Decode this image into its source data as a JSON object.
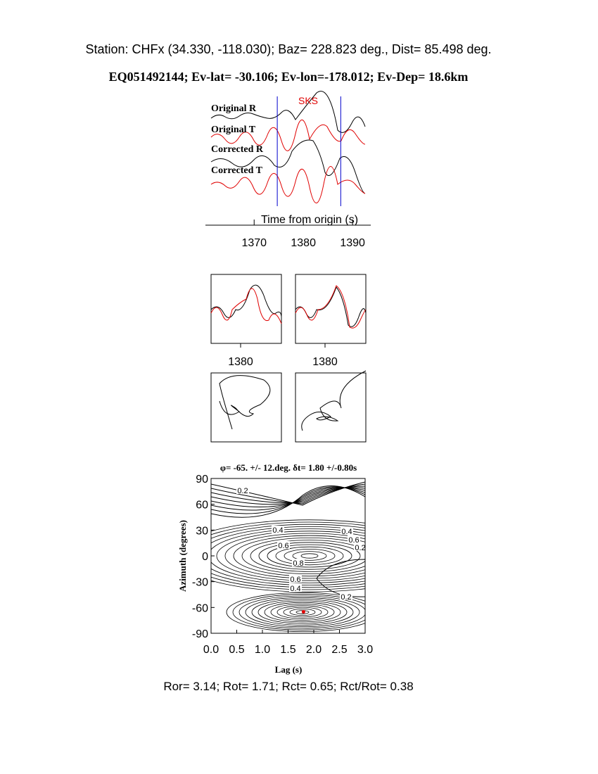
{
  "header": {
    "station": "Station: CHFx (34.330, -118.030); Baz=  228.823 deg., Dist=   85.498 deg.",
    "event": "EQ051492144; Ev-lat= -30.106; Ev-lon=-178.012; Ev-Dep= 18.6km"
  },
  "chart_data": [
    {
      "type": "traces",
      "phase": "SKS",
      "labels": [
        "Original R",
        "Original T",
        "Corrected R",
        "Corrected T"
      ],
      "xlabel": "Time from origin (s)",
      "xlim": [
        1360.1,
        1393.7
      ],
      "xticks": [
        1370,
        1380,
        1390
      ],
      "window": [
        1374.7,
        1387.6
      ]
    },
    {
      "type": "panels",
      "xticks": [
        1380,
        1380
      ]
    },
    {
      "type": "contour",
      "title": "φ= -65. +/- 12.deg. δt= 1.80 +/-0.80s",
      "xlabel": "Lag (s)",
      "ylabel": "Azimuth (degrees)",
      "xlim": [
        0,
        3
      ],
      "ylim": [
        -90,
        90
      ],
      "xticks": [
        {
          "value": 0,
          "label": "0.0"
        },
        0.5,
        {
          "value": 1,
          "label": "1.0"
        },
        1.5,
        {
          "value": 2,
          "label": "2.0"
        },
        2.5,
        {
          "value": 3,
          "label": "3.0"
        }
      ],
      "yticks": [
        90,
        60,
        30,
        0,
        -30,
        -60,
        -90
      ],
      "best": {
        "x": 1.8,
        "y": -65,
        "color": "#e00000"
      },
      "contour_labels": [
        "0.2",
        "0.4",
        "0.6",
        "0.8",
        "0.6",
        "0.4",
        "0.4",
        "0.6",
        "0.2",
        "0.2"
      ]
    }
  ],
  "footer": "Ror= 3.14; Rot= 1.71; Rct= 0.65; Rct/Rot= 0.38"
}
